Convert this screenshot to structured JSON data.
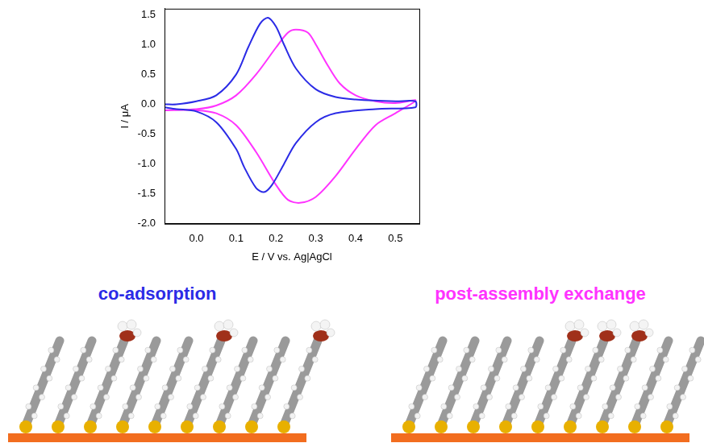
{
  "chart_data": {
    "type": "line",
    "x_label": "E / V vs. Ag|AgCl",
    "y_label": "I / μA",
    "xlim": [
      -0.08,
      0.56
    ],
    "xticks": [
      {
        "value": 0,
        "label": "0.0"
      },
      0.1,
      0.2,
      0.3,
      0.4,
      0.5
    ],
    "ylim": [
      -2.0,
      1.6
    ],
    "yticks": [
      {
        "value": -2,
        "label": "-2.0"
      },
      -1.5,
      {
        "value": -1,
        "label": "-1.0"
      },
      -0.5,
      {
        "value": 0,
        "label": "0.0"
      },
      0.5,
      {
        "value": 1,
        "label": "1.0"
      },
      1.5
    ],
    "grid": false,
    "legend": "bottom",
    "series": [
      {
        "name": "co-adsorption",
        "color": "#2b2be6",
        "x": [
          -0.08,
          -0.05,
          0.0,
          0.05,
          0.1,
          0.13,
          0.16,
          0.18,
          0.2,
          0.22,
          0.25,
          0.3,
          0.35,
          0.4,
          0.5,
          0.55,
          0.55,
          0.45,
          0.35,
          0.3,
          0.25,
          0.22,
          0.19,
          0.17,
          0.15,
          0.12,
          0.1,
          0.05,
          0.0,
          -0.05,
          -0.08
        ],
        "values": [
          0.0,
          0.0,
          0.05,
          0.15,
          0.5,
          0.95,
          1.35,
          1.45,
          1.3,
          1.0,
          0.6,
          0.25,
          0.12,
          0.08,
          0.05,
          0.05,
          -0.05,
          -0.08,
          -0.15,
          -0.3,
          -0.65,
          -1.0,
          -1.35,
          -1.47,
          -1.4,
          -1.05,
          -0.75,
          -0.3,
          -0.12,
          -0.08,
          -0.05
        ]
      },
      {
        "name": "post-assembly exchange",
        "color": "#ff33ff",
        "x": [
          -0.08,
          0.0,
          0.05,
          0.1,
          0.15,
          0.2,
          0.23,
          0.25,
          0.28,
          0.3,
          0.33,
          0.36,
          0.4,
          0.45,
          0.5,
          0.55,
          0.55,
          0.5,
          0.45,
          0.4,
          0.35,
          0.3,
          0.26,
          0.23,
          0.2,
          0.15,
          0.1,
          0.05,
          0.0,
          -0.08
        ],
        "values": [
          -0.1,
          -0.08,
          -0.02,
          0.15,
          0.5,
          0.95,
          1.2,
          1.25,
          1.2,
          1.0,
          0.65,
          0.35,
          0.15,
          0.05,
          0.02,
          0.07,
          0.05,
          -0.15,
          -0.35,
          -0.75,
          -1.2,
          -1.55,
          -1.65,
          -1.6,
          -1.35,
          -0.8,
          -0.35,
          -0.15,
          -0.1,
          -0.1
        ]
      }
    ]
  }
}
